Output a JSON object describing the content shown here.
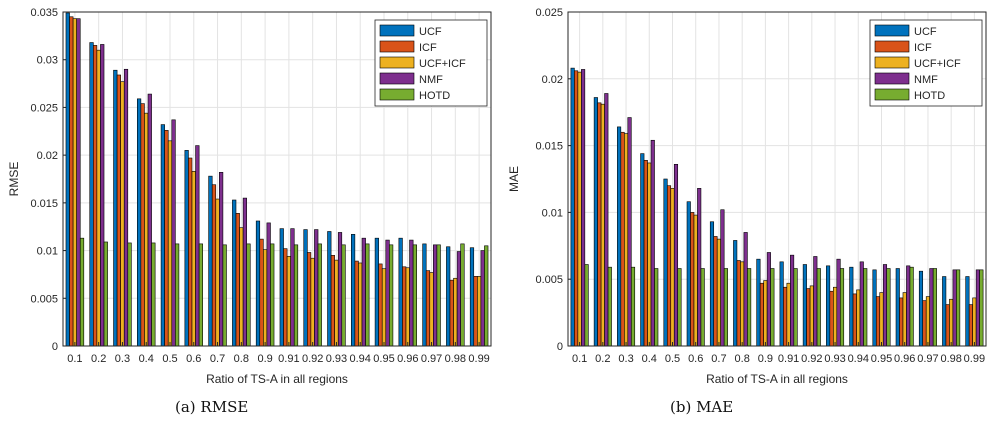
{
  "captions": [
    "(a)  RMSE",
    "(b)  MAE"
  ],
  "colors": {
    "UCF": "#0072BD",
    "ICF": "#D95319",
    "UCF+ICF": "#EDB120",
    "NMF": "#7E2F8E",
    "HOTD": "#77AC30"
  },
  "chart_data": [
    {
      "type": "bar",
      "xlabel": "Ratio of TS-A in all regions",
      "ylabel": "RMSE",
      "ylim": [
        0,
        0.035
      ],
      "yticks": [
        "0",
        "0.005",
        "0.01",
        "0.015",
        "0.02",
        "0.025",
        "0.03",
        "0.035"
      ],
      "grid": true,
      "legend_position": "top-right",
      "categories": [
        "0.1",
        "0.2",
        "0.3",
        "0.4",
        "0.5",
        "0.6",
        "0.7",
        "0.8",
        "0.9",
        "0.91",
        "0.92",
        "0.93",
        "0.94",
        "0.95",
        "0.96",
        "0.97",
        "0.98",
        "0.99"
      ],
      "series": [
        {
          "name": "UCF",
          "values": [
            0.0349,
            0.0318,
            0.0289,
            0.0259,
            0.0232,
            0.0205,
            0.0178,
            0.0153,
            0.0131,
            0.0123,
            0.0122,
            0.012,
            0.0117,
            0.0113,
            0.0113,
            0.0107,
            0.0104,
            0.0103
          ]
        },
        {
          "name": "ICF",
          "values": [
            0.0345,
            0.0315,
            0.0284,
            0.0254,
            0.0226,
            0.0197,
            0.0169,
            0.0139,
            0.0112,
            0.0102,
            0.0098,
            0.0095,
            0.0089,
            0.0086,
            0.0083,
            0.0079,
            0.0069,
            0.0073
          ]
        },
        {
          "name": "UCF+ICF",
          "values": [
            0.0343,
            0.031,
            0.0277,
            0.0244,
            0.0215,
            0.0183,
            0.0154,
            0.0124,
            0.0101,
            0.0094,
            0.0092,
            0.009,
            0.0087,
            0.0081,
            0.0082,
            0.0077,
            0.0071,
            0.0073
          ]
        },
        {
          "name": "NMF",
          "values": [
            0.0343,
            0.0316,
            0.029,
            0.0264,
            0.0237,
            0.021,
            0.0182,
            0.0155,
            0.0129,
            0.0123,
            0.0122,
            0.0119,
            0.0113,
            0.0111,
            0.0111,
            0.0106,
            0.0099,
            0.01
          ]
        },
        {
          "name": "HOTD",
          "values": [
            0.0113,
            0.0109,
            0.0108,
            0.0108,
            0.0107,
            0.0107,
            0.0106,
            0.0107,
            0.0107,
            0.0106,
            0.0107,
            0.0106,
            0.0107,
            0.0106,
            0.0106,
            0.0106,
            0.0107,
            0.0105
          ]
        }
      ]
    },
    {
      "type": "bar",
      "xlabel": "Ratio of TS-A in all regions",
      "ylabel": "MAE",
      "ylim": [
        0,
        0.025
      ],
      "yticks": [
        "0",
        "0.005",
        "0.01",
        "0.015",
        "0.02",
        "0.025"
      ],
      "grid": true,
      "legend_position": "top-right",
      "categories": [
        "0.1",
        "0.2",
        "0.3",
        "0.4",
        "0.5",
        "0.6",
        "0.7",
        "0.8",
        "0.9",
        "0.91",
        "0.92",
        "0.93",
        "0.94",
        "0.95",
        "0.96",
        "0.97",
        "0.98",
        "0.99"
      ],
      "series": [
        {
          "name": "UCF",
          "values": [
            0.0208,
            0.0186,
            0.0164,
            0.0144,
            0.0125,
            0.0108,
            0.0093,
            0.0079,
            0.0065,
            0.0063,
            0.0061,
            0.006,
            0.0059,
            0.0057,
            0.0058,
            0.0056,
            0.0052,
            0.0052
          ]
        },
        {
          "name": "ICF",
          "values": [
            0.0206,
            0.0182,
            0.016,
            0.0139,
            0.012,
            0.01,
            0.0082,
            0.0064,
            0.0047,
            0.0044,
            0.0043,
            0.0041,
            0.0039,
            0.0037,
            0.0036,
            0.0034,
            0.0031,
            0.0031
          ]
        },
        {
          "name": "UCF+ICF",
          "values": [
            0.0205,
            0.0181,
            0.0159,
            0.0137,
            0.0118,
            0.0098,
            0.008,
            0.0063,
            0.0049,
            0.0047,
            0.0045,
            0.0044,
            0.0042,
            0.004,
            0.004,
            0.0037,
            0.0035,
            0.0036
          ]
        },
        {
          "name": "NMF",
          "values": [
            0.0207,
            0.0189,
            0.0171,
            0.0154,
            0.0136,
            0.0118,
            0.0102,
            0.0085,
            0.007,
            0.0068,
            0.0067,
            0.0065,
            0.0063,
            0.0061,
            0.006,
            0.0058,
            0.0057,
            0.0057
          ]
        },
        {
          "name": "HOTD",
          "values": [
            0.0061,
            0.0059,
            0.0059,
            0.0058,
            0.0058,
            0.0058,
            0.0058,
            0.0058,
            0.0058,
            0.0058,
            0.0058,
            0.0058,
            0.0058,
            0.0058,
            0.0059,
            0.0058,
            0.0057,
            0.0057
          ]
        }
      ]
    }
  ]
}
